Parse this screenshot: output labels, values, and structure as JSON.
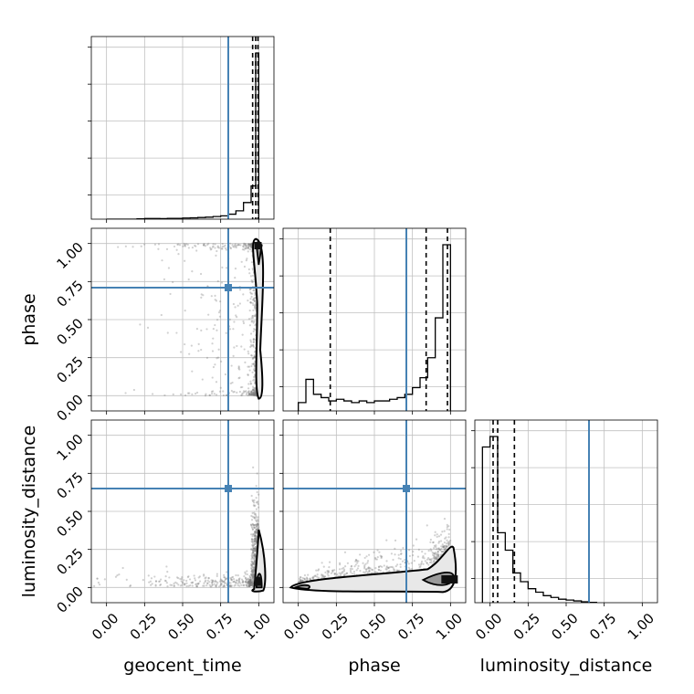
{
  "chart_data": {
    "type": "corner",
    "parameters": [
      "geocent_time",
      "phase",
      "luminosity_distance"
    ],
    "tick_labels": [
      "0.00",
      "0.25",
      "0.50",
      "0.75",
      "1.00"
    ],
    "ticks": [
      0,
      0.25,
      0.5,
      0.75,
      1.0
    ],
    "axis_range": [
      -0.1,
      1.1
    ],
    "truths": {
      "geocent_time": 0.8,
      "phase": 0.71,
      "luminosity_distance": 0.65
    },
    "truth_color": "#4682b4",
    "grid": true,
    "histograms": {
      "geocent_time": {
        "bin_edges": [
          0.0,
          0.05,
          0.1,
          0.15,
          0.2,
          0.25,
          0.3,
          0.35,
          0.4,
          0.45,
          0.5,
          0.55,
          0.6,
          0.65,
          0.7,
          0.75,
          0.8,
          0.85,
          0.9,
          0.95,
          0.98,
          1.0
        ],
        "counts": [
          0,
          0,
          0,
          0,
          0.002,
          0.004,
          0.004,
          0.003,
          0.005,
          0.005,
          0.007,
          0.008,
          0.01,
          0.012,
          0.016,
          0.02,
          0.03,
          0.05,
          0.1,
          0.2,
          1.0
        ],
        "quantiles": [
          0.96,
          0.98,
          0.995
        ]
      },
      "phase": {
        "bin_edges": [
          0.0,
          0.05,
          0.1,
          0.15,
          0.2,
          0.25,
          0.3,
          0.35,
          0.4,
          0.45,
          0.5,
          0.55,
          0.6,
          0.65,
          0.7,
          0.75,
          0.8,
          0.85,
          0.9,
          0.95,
          1.0
        ],
        "counts": [
          0.05,
          0.19,
          0.1,
          0.08,
          0.06,
          0.07,
          0.06,
          0.05,
          0.06,
          0.05,
          0.06,
          0.06,
          0.07,
          0.08,
          0.1,
          0.14,
          0.2,
          0.32,
          0.56,
          1.0
        ],
        "quantiles": [
          0.21,
          0.84,
          0.98
        ]
      },
      "luminosity_distance": {
        "bin_edges": [
          -0.05,
          0.0,
          0.05,
          0.1,
          0.15,
          0.2,
          0.25,
          0.3,
          0.35,
          0.4,
          0.45,
          0.5,
          0.55,
          0.6,
          0.65,
          0.7
        ],
        "counts": [
          0.89,
          0.95,
          0.4,
          0.3,
          0.17,
          0.12,
          0.08,
          0.06,
          0.04,
          0.03,
          0.02,
          0.015,
          0.01,
          0.005,
          0.002
        ],
        "quantiles": [
          0.02,
          0.05,
          0.16
        ]
      }
    },
    "scatter_panels": [
      {
        "x": "geocent_time",
        "y": "phase"
      },
      {
        "x": "geocent_time",
        "y": "luminosity_distance"
      },
      {
        "x": "phase",
        "y": "luminosity_distance"
      }
    ]
  }
}
